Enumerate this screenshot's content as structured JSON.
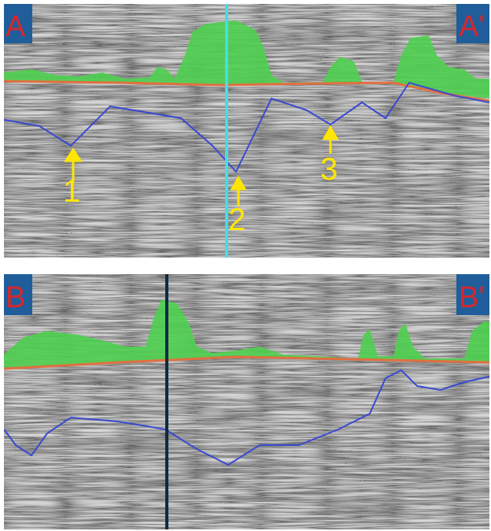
{
  "panels": [
    {
      "left_label": "A",
      "right_label": "A'",
      "annotations": [
        "1",
        "2",
        "3"
      ]
    },
    {
      "left_label": "B",
      "right_label": "B'"
    }
  ]
}
